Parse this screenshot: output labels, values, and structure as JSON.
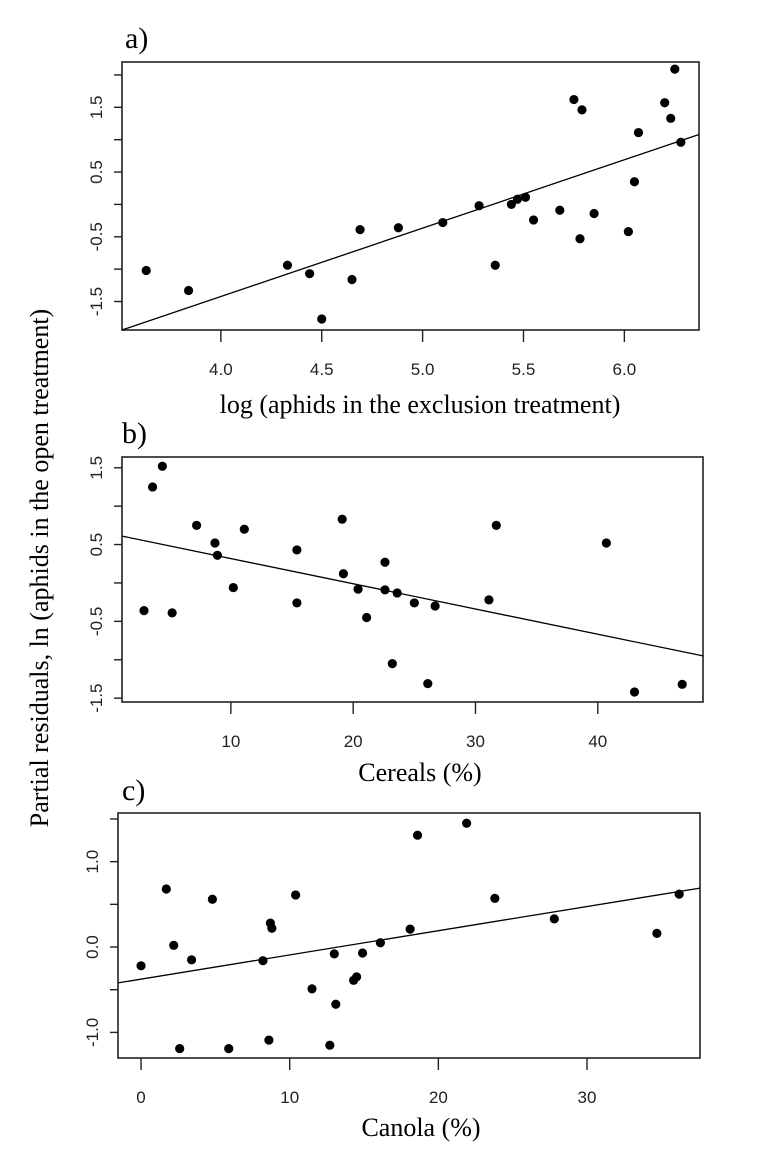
{
  "shared_ylabel": "Partial residuals, ln (aphids in the open treatment)",
  "chart_data": [
    {
      "type": "scatter",
      "panel_label": "a)",
      "xlabel": "log (aphids in the exclusion treatment)",
      "ylabel": "Partial residuals, ln (aphids in the open treatment)",
      "xlim": [
        3.51,
        6.37
      ],
      "ylim": [
        -1.94,
        2.2
      ],
      "xticks": [
        4.0,
        4.5,
        5.0,
        5.5,
        6.0
      ],
      "xtick_labels": [
        "4.0",
        "4.5",
        "5.0",
        "5.5",
        "6.0"
      ],
      "yticks": [
        2.0,
        1.5,
        1.0,
        0.5,
        0.0,
        -0.5,
        -1.0,
        -1.5
      ],
      "ytick_labels": {
        "1.5": "1.5",
        "0.5": "0.5",
        "-0.5": "-0.5",
        "-1.5": "-1.5"
      },
      "fit_line": {
        "x": [
          3.51,
          6.37
        ],
        "y": [
          -1.94,
          1.08
        ]
      },
      "points": [
        [
          3.63,
          -1.02
        ],
        [
          3.84,
          -1.33
        ],
        [
          4.33,
          -0.94
        ],
        [
          4.44,
          -1.07
        ],
        [
          4.5,
          -1.77
        ],
        [
          4.65,
          -1.16
        ],
        [
          4.69,
          -0.39
        ],
        [
          4.88,
          -0.36
        ],
        [
          5.1,
          -0.28
        ],
        [
          5.28,
          -0.02
        ],
        [
          5.36,
          -0.94
        ],
        [
          5.44,
          0.0
        ],
        [
          5.47,
          0.08
        ],
        [
          5.51,
          0.11
        ],
        [
          5.55,
          -0.24
        ],
        [
          5.68,
          -0.09
        ],
        [
          5.75,
          1.62
        ],
        [
          5.78,
          -0.53
        ],
        [
          5.79,
          1.46
        ],
        [
          5.85,
          -0.14
        ],
        [
          6.02,
          -0.42
        ],
        [
          6.05,
          0.35
        ],
        [
          6.07,
          1.11
        ],
        [
          6.2,
          1.57
        ],
        [
          6.23,
          1.33
        ],
        [
          6.25,
          2.09
        ],
        [
          6.28,
          0.96
        ]
      ]
    },
    {
      "type": "scatter",
      "panel_label": "b)",
      "xlabel": "Cereals (%)",
      "ylabel": "Partial residuals, ln (aphids in the open treatment)",
      "xlim": [
        1.1,
        48.6
      ],
      "ylim": [
        -1.55,
        1.64
      ],
      "xticks": [
        10,
        20,
        30,
        40
      ],
      "xtick_labels": [
        "10",
        "20",
        "30",
        "40"
      ],
      "yticks": [
        1.5,
        1.0,
        0.5,
        0.0,
        -0.5,
        -1.0,
        -1.5
      ],
      "ytick_labels": {
        "1.5": "1.5",
        "0.5": "0.5",
        "-0.5": "-0.5",
        "-1.5": "-1.5"
      },
      "fit_line": {
        "x": [
          1.1,
          48.6
        ],
        "y": [
          0.61,
          -0.95
        ]
      },
      "points": [
        [
          2.9,
          -0.36
        ],
        [
          3.6,
          1.25
        ],
        [
          4.4,
          1.52
        ],
        [
          5.2,
          -0.39
        ],
        [
          7.2,
          0.75
        ],
        [
          8.7,
          0.52
        ],
        [
          8.9,
          0.36
        ],
        [
          10.2,
          -0.06
        ],
        [
          11.1,
          0.7
        ],
        [
          15.4,
          0.43
        ],
        [
          15.4,
          -0.26
        ],
        [
          19.1,
          0.83
        ],
        [
          19.2,
          0.12
        ],
        [
          20.4,
          -0.08
        ],
        [
          21.1,
          -0.45
        ],
        [
          22.6,
          0.27
        ],
        [
          22.6,
          -0.09
        ],
        [
          23.2,
          -1.05
        ],
        [
          23.6,
          -0.13
        ],
        [
          25.0,
          -0.26
        ],
        [
          26.1,
          -1.31
        ],
        [
          26.7,
          -0.3
        ],
        [
          31.1,
          -0.22
        ],
        [
          31.7,
          0.75
        ],
        [
          40.7,
          0.52
        ],
        [
          43.0,
          -1.42
        ],
        [
          46.9,
          -1.32
        ]
      ]
    },
    {
      "type": "scatter",
      "panel_label": "c)",
      "xlabel": "Canola (%)",
      "ylabel": "Partial residuals, ln (aphids in the open treatment)",
      "xlim": [
        -1.55,
        37.6
      ],
      "ylim": [
        -1.3,
        1.57
      ],
      "xticks": [
        0,
        10,
        20,
        30
      ],
      "xtick_labels": [
        "0",
        "10",
        "20",
        "30"
      ],
      "yticks": [
        1.5,
        1.0,
        0.5,
        0.0,
        -0.5,
        -1.0
      ],
      "ytick_labels": {
        "1": "1.0",
        "0": "0.0",
        "-1": "-1.0"
      },
      "fit_line": {
        "x": [
          -1.55,
          37.6
        ],
        "y": [
          -0.42,
          0.69
        ]
      },
      "points": [
        [
          0.0,
          -0.22
        ],
        [
          1.7,
          0.68
        ],
        [
          2.2,
          0.02
        ],
        [
          2.6,
          -1.19
        ],
        [
          3.4,
          -0.15
        ],
        [
          4.8,
          0.56
        ],
        [
          5.9,
          -1.19
        ],
        [
          8.2,
          -0.16
        ],
        [
          8.6,
          -1.09
        ],
        [
          8.7,
          0.28
        ],
        [
          8.8,
          0.22
        ],
        [
          10.4,
          0.61
        ],
        [
          11.5,
          -0.49
        ],
        [
          12.7,
          -1.15
        ],
        [
          13.0,
          -0.08
        ],
        [
          13.1,
          -0.67
        ],
        [
          14.3,
          -0.39
        ],
        [
          14.5,
          -0.35
        ],
        [
          14.9,
          -0.07
        ],
        [
          16.1,
          0.05
        ],
        [
          18.1,
          0.21
        ],
        [
          18.6,
          1.31
        ],
        [
          21.9,
          1.45
        ],
        [
          23.8,
          0.57
        ],
        [
          27.8,
          0.33
        ],
        [
          34.7,
          0.16
        ],
        [
          36.2,
          0.62
        ]
      ]
    }
  ]
}
